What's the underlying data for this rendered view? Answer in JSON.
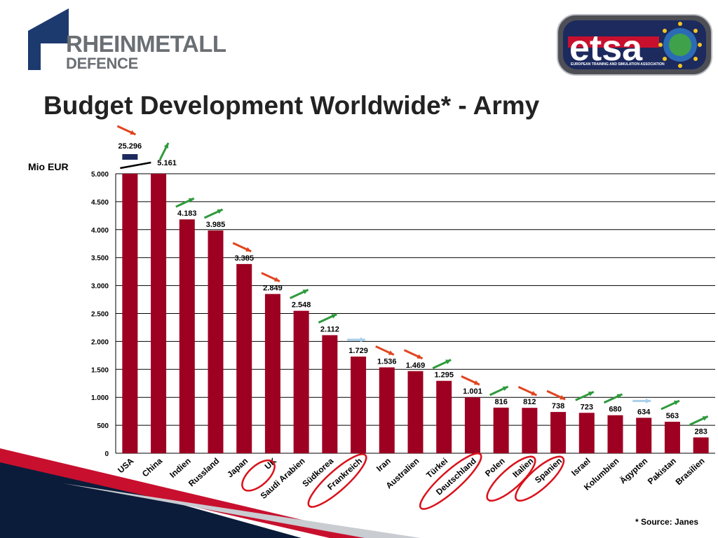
{
  "header": {
    "logo_left_line1": "RHEINMETALL",
    "logo_left_line2": "DEFENCE",
    "logo_right_text": "etsa",
    "logo_right_subtitle": "EUROPEAN TRAINING AND SIMULATION ASSOCIATION"
  },
  "title": "Budget Development Worldwide* - Army",
  "unit_label": "Mio EUR",
  "footnote": "* Source: Janes",
  "colors": {
    "bar": "#9e0022",
    "arrow_up": "#2e9a3c",
    "arrow_down": "#e0451e",
    "arrow_flat": "#a9cfe9",
    "highlight_ring": "#d9121b",
    "logo_blue": "#1c3a6e"
  },
  "chart_data": {
    "type": "bar",
    "categories": [
      "USA",
      "China",
      "Indien",
      "Russland",
      "Japan",
      "UK",
      "Saudi Arabien",
      "Südkorea",
      "Frankreich",
      "Iran",
      "Australien",
      "Türkei",
      "Deutschland",
      "Polen",
      "Italien",
      "Spanien",
      "Israel",
      "Kolumbien",
      "Ägypten",
      "Pakistan",
      "Brasilien"
    ],
    "values": [
      25296,
      5161,
      4183,
      3985,
      3385,
      2849,
      2548,
      2112,
      1729,
      1536,
      1469,
      1295,
      1001,
      816,
      812,
      738,
      723,
      680,
      634,
      563,
      283
    ],
    "value_labels": [
      "25.296",
      "5.161",
      "4.183",
      "3.985",
      "3.385",
      "2.849",
      "2.548",
      "2.112",
      "1.729",
      "1.536",
      "1.469",
      "1.295",
      "1.001",
      "816",
      "812",
      "738",
      "723",
      "680",
      "634",
      "563",
      "283"
    ],
    "trend": [
      "down",
      "up",
      "up",
      "up",
      "down",
      "down",
      "up",
      "up",
      "flat",
      "down",
      "down",
      "up",
      "down",
      "up",
      "down",
      "down",
      "up",
      "up",
      "flat",
      "up",
      "up"
    ],
    "highlighted": [
      "UK",
      "Frankreich",
      "Deutschland",
      "Italien",
      "Spanien"
    ],
    "truncated": [
      "USA",
      "China"
    ],
    "ylim": [
      0,
      5000
    ],
    "yticks": [
      0,
      500,
      1000,
      1500,
      2000,
      2500,
      3000,
      3500,
      4000,
      4500,
      5000
    ],
    "ytick_labels": [
      "0",
      "500",
      "1.000",
      "1.500",
      "2.000",
      "2.500",
      "3.000",
      "3.500",
      "4.000",
      "4.500",
      "5.000"
    ],
    "ylabel": "Mio EUR",
    "grid": true
  }
}
